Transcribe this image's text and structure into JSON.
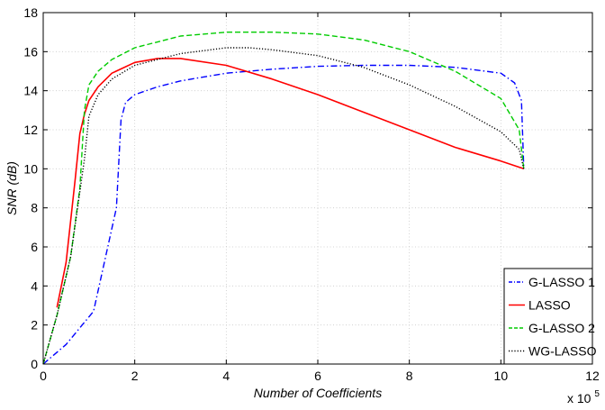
{
  "chart_data": {
    "type": "line",
    "xlabel": "Number of Coefficients",
    "ylabel": "SNR (dB)",
    "x_multiplier_label": "x 10",
    "x_multiplier_exponent": "5",
    "xlim": [
      0,
      12
    ],
    "ylim": [
      0,
      18
    ],
    "xticks": [
      0,
      2,
      4,
      6,
      8,
      10,
      12
    ],
    "yticks": [
      0,
      2,
      4,
      6,
      8,
      10,
      12,
      14,
      16,
      18
    ],
    "grid": true,
    "legend_position": "bottom-right",
    "series": [
      {
        "name": "G-LASSO 1",
        "color": "#0000ff",
        "dash": "dash-dot",
        "x": [
          0,
          0.5,
          1.1,
          1.6,
          1.7,
          1.8,
          2.0,
          2.5,
          3.0,
          4.0,
          5.0,
          6.0,
          7.0,
          8.0,
          9.0,
          10.0,
          10.3,
          10.45,
          10.5
        ],
        "y": [
          0,
          1.0,
          2.7,
          8.0,
          12.5,
          13.4,
          13.8,
          14.2,
          14.5,
          14.9,
          15.1,
          15.25,
          15.3,
          15.3,
          15.2,
          14.9,
          14.4,
          13.5,
          10.0
        ]
      },
      {
        "name": "LASSO",
        "color": "#ff0000",
        "dash": "solid",
        "x": [
          0.3,
          0.5,
          0.7,
          0.8,
          0.9,
          1.0,
          1.2,
          1.5,
          2.0,
          2.5,
          3.0,
          4.0,
          5.0,
          6.0,
          7.0,
          8.0,
          9.0,
          10.0,
          10.5
        ],
        "y": [
          2.9,
          5.2,
          9.5,
          11.8,
          12.8,
          13.5,
          14.2,
          14.9,
          15.45,
          15.65,
          15.65,
          15.3,
          14.6,
          13.8,
          12.9,
          12.0,
          11.1,
          10.4,
          10.0
        ]
      },
      {
        "name": "G-LASSO 2",
        "color": "#00cc00",
        "dash": "dashed",
        "x": [
          0,
          0.3,
          0.6,
          0.8,
          0.9,
          1.0,
          1.2,
          1.5,
          2.0,
          3.0,
          4.0,
          5.0,
          6.0,
          7.0,
          8.0,
          9.0,
          10.0,
          10.4,
          10.5
        ],
        "y": [
          0,
          2.5,
          5.5,
          9.0,
          13.0,
          14.3,
          15.0,
          15.6,
          16.2,
          16.8,
          17.0,
          17.0,
          16.9,
          16.6,
          16.0,
          15.0,
          13.6,
          12.0,
          10.0
        ]
      },
      {
        "name": "WG-LASSO",
        "color": "#000000",
        "dash": "dotted",
        "x": [
          0,
          0.3,
          0.6,
          0.9,
          1.0,
          1.2,
          1.5,
          2.0,
          3.0,
          4.0,
          4.5,
          5.0,
          6.0,
          7.0,
          8.0,
          9.0,
          10.0,
          10.4,
          10.5
        ],
        "y": [
          0,
          2.5,
          5.5,
          10.5,
          12.7,
          13.8,
          14.6,
          15.3,
          15.9,
          16.2,
          16.2,
          16.1,
          15.8,
          15.2,
          14.3,
          13.2,
          11.9,
          11.0,
          10.0
        ]
      }
    ]
  }
}
